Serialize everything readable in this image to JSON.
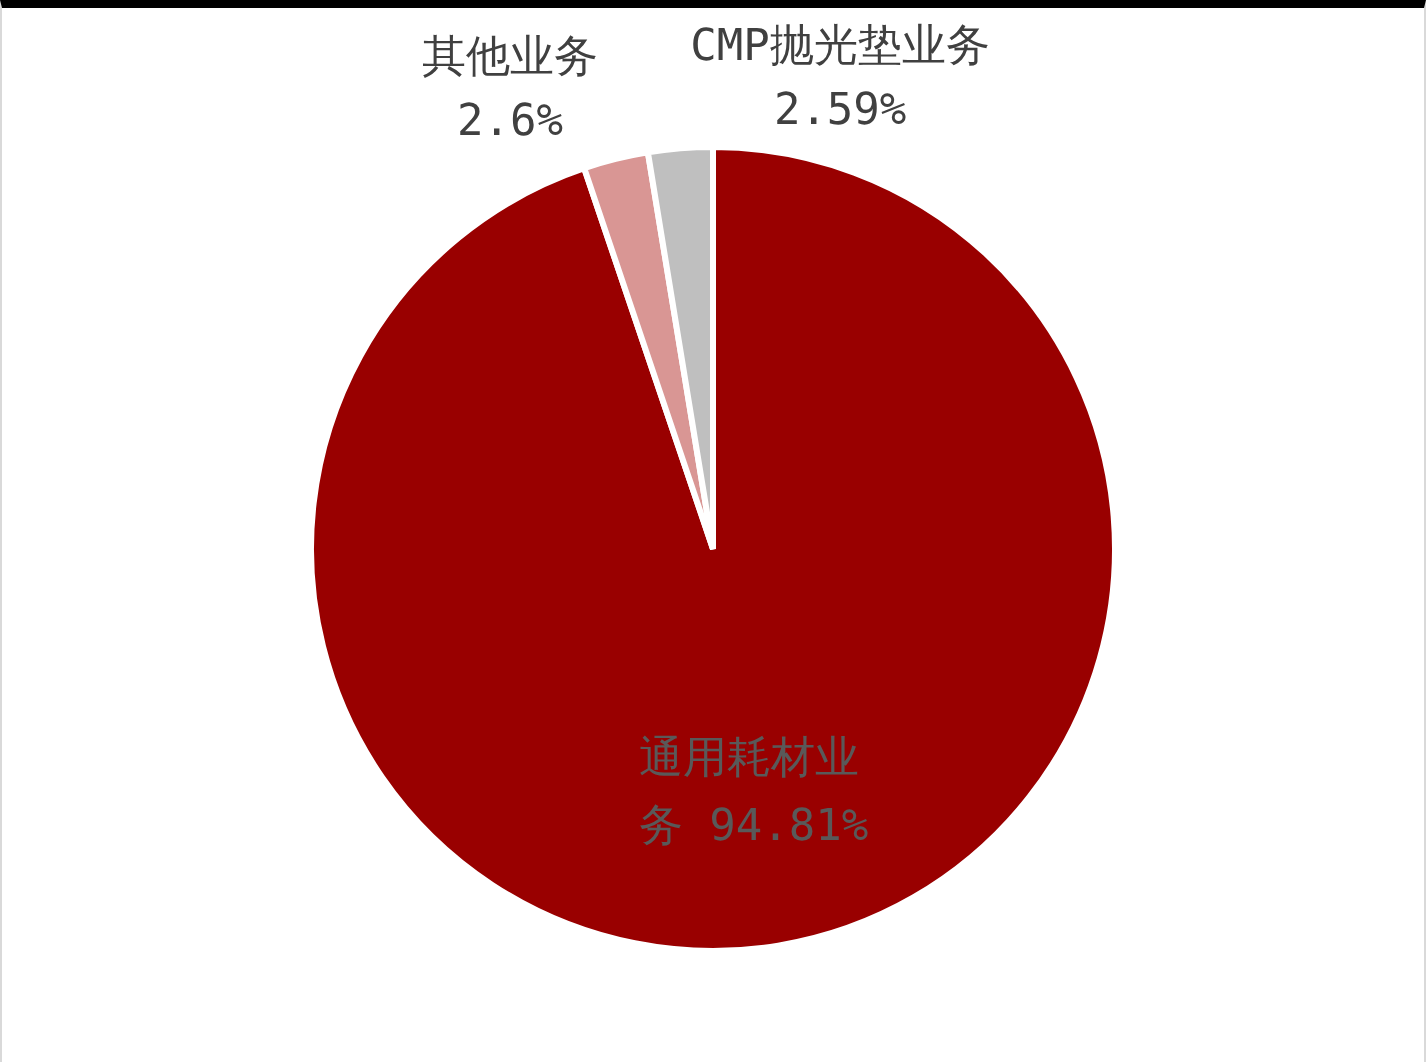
{
  "chart_data": {
    "type": "pie",
    "categories": [
      "通用耗材业务",
      "其他业务",
      "CMP抛光垫业务"
    ],
    "values": [
      94.81,
      2.6,
      2.59
    ],
    "colors": [
      "#990000",
      "#d99694",
      "#bfbfbf"
    ],
    "value_labels": [
      "94.81%",
      "2.6%",
      "2.59%"
    ],
    "legend": false
  }
}
